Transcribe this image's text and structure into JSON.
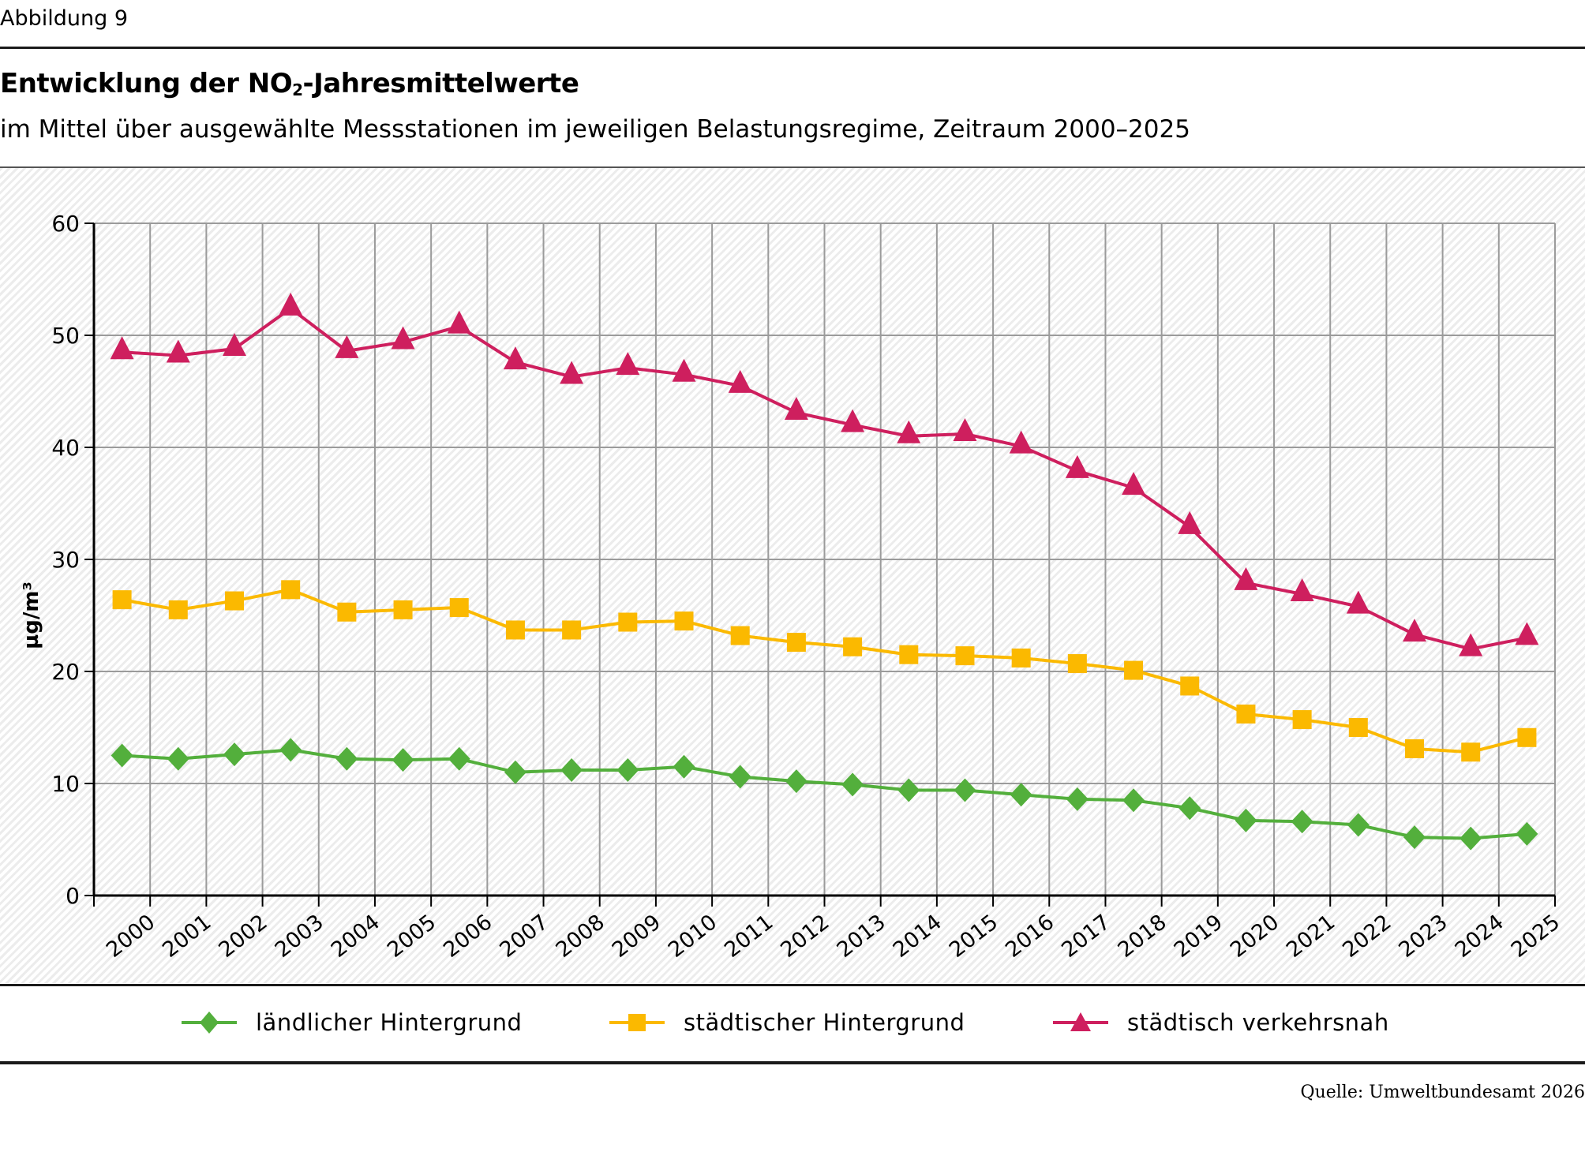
{
  "figure_label": "Abbildung 9",
  "title_part1": "Entwicklung der NO",
  "title_sub": "2",
  "title_part2": "-Jahresmittelwerte",
  "subtitle": "im Mittel über ausgewählte Messstationen im jeweiligen Belastungsregime, Zeitraum 2000–2025",
  "source": "Quelle: Umweltbundesamt 2026",
  "chart_data": {
    "type": "line",
    "title": "Entwicklung der NO2-Jahresmittelwerte",
    "subtitle": "im Mittel über ausgewählte Messstationen im jeweiligen Belastungsregime, Zeitraum 2000–2025",
    "xlabel": "",
    "ylabel": "µg/m³",
    "ylim": [
      0,
      60
    ],
    "yticks": [
      0,
      10,
      20,
      30,
      40,
      50,
      60
    ],
    "grid": true,
    "legend_position": "bottom",
    "x": [
      "2000",
      "2001",
      "2002",
      "2003",
      "2004",
      "2005",
      "2006",
      "2007",
      "2008",
      "2009",
      "2010",
      "2011",
      "2012",
      "2013",
      "2014",
      "2015",
      "2016",
      "2017",
      "2018",
      "2019",
      "2020",
      "2021",
      "2022",
      "2023",
      "2024",
      "2025"
    ],
    "series": [
      {
        "name": "ländlicher Hintergrund",
        "marker": "diamond",
        "color": "#53AF3C",
        "values": [
          12.5,
          12.2,
          12.6,
          13.0,
          12.2,
          12.1,
          12.2,
          11.0,
          11.2,
          11.2,
          11.5,
          10.6,
          10.2,
          9.9,
          9.4,
          9.4,
          9.0,
          8.6,
          8.5,
          7.8,
          6.7,
          6.6,
          6.3,
          5.2,
          5.1,
          5.5
        ]
      },
      {
        "name": "städtischer Hintergrund",
        "marker": "square",
        "color": "#FBB900",
        "values": [
          26.4,
          25.5,
          26.3,
          27.3,
          25.3,
          25.5,
          25.7,
          23.7,
          23.7,
          24.4,
          24.5,
          23.2,
          22.6,
          22.2,
          21.5,
          21.4,
          21.2,
          20.7,
          20.1,
          18.7,
          16.2,
          15.7,
          15.0,
          13.1,
          12.8,
          14.1
        ]
      },
      {
        "name": "städtisch verkehrsnah",
        "marker": "triangle",
        "color": "#CE1F5E",
        "values": [
          48.5,
          48.2,
          48.8,
          52.4,
          48.6,
          49.4,
          50.8,
          47.6,
          46.3,
          47.1,
          46.5,
          45.5,
          43.1,
          42.0,
          41.0,
          41.2,
          40.1,
          37.9,
          36.4,
          32.9,
          27.9,
          26.9,
          25.8,
          23.3,
          22.0,
          23.0
        ]
      }
    ]
  }
}
